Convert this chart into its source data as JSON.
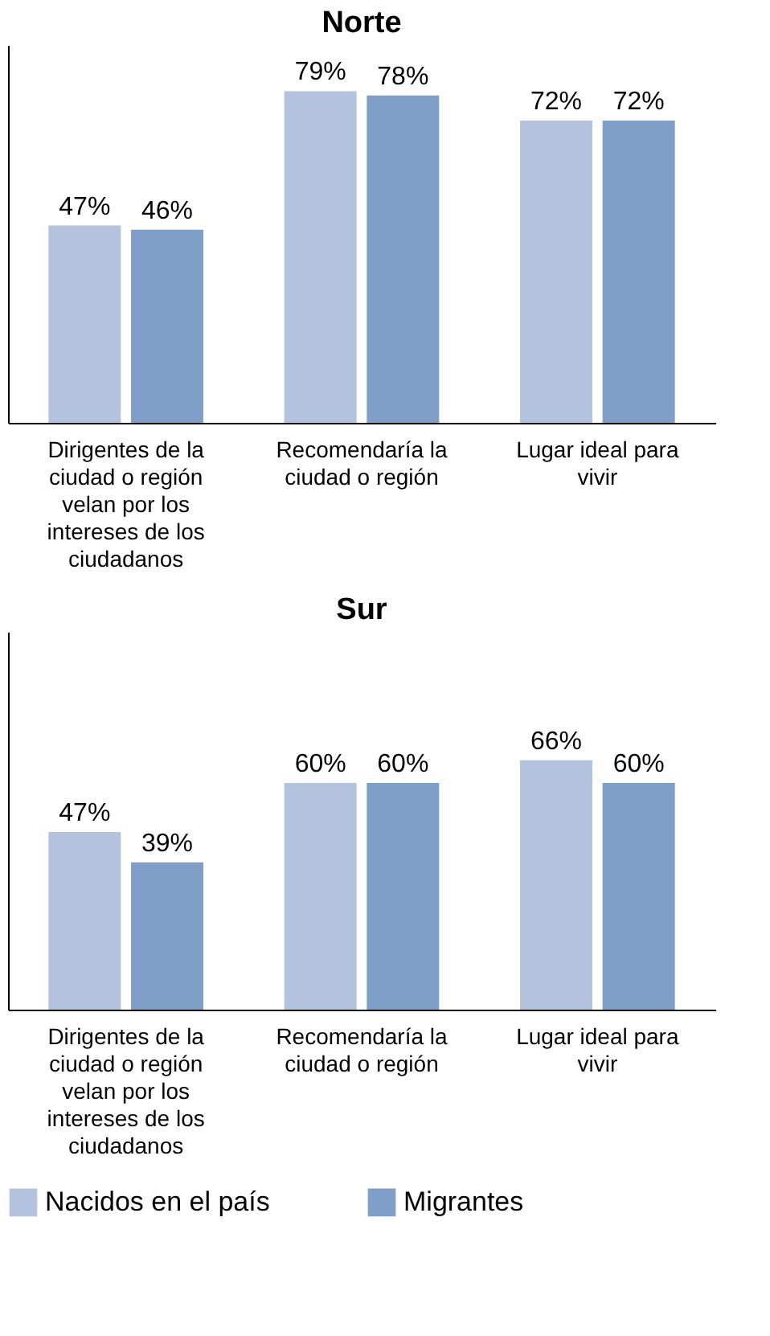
{
  "chart_data": [
    {
      "type": "bar",
      "title": "Norte",
      "categories": [
        "Dirigentes de la ciudad o región velan por los intereses de los ciudadanos",
        "Recomendaría la ciudad o región",
        "Lugar ideal para vivir"
      ],
      "series": [
        {
          "name": "Nacidos en el país",
          "color": "#b3c3de",
          "values": [
            47,
            79,
            72
          ],
          "value_labels": [
            "47%",
            "79%",
            "72%"
          ]
        },
        {
          "name": "Migrantes",
          "color": "#7f9fc8",
          "values": [
            46,
            78,
            72
          ],
          "value_labels": [
            "46%",
            "78%",
            "72%"
          ]
        }
      ],
      "ylim": [
        0,
        90
      ],
      "tick_labels": "x",
      "legend": "bottom"
    },
    {
      "type": "bar",
      "title": "Sur",
      "categories": [
        "Dirigentes de la ciudad o región velan por los intereses de los ciudadanos",
        "Recomendaría la ciudad o región",
        "Lugar ideal para vivir"
      ],
      "series": [
        {
          "name": "Nacidos en el país",
          "color": "#b3c3de",
          "values": [
            47,
            60,
            66
          ],
          "value_labels": [
            "47%",
            "60%",
            "66%"
          ]
        },
        {
          "name": "Migrantes",
          "color": "#7f9fc8",
          "values": [
            39,
            60,
            60
          ],
          "value_labels": [
            "39%",
            "60%",
            "60%"
          ]
        }
      ],
      "ylim": [
        0,
        100
      ],
      "tick_labels": "x",
      "legend": "bottom"
    }
  ]
}
